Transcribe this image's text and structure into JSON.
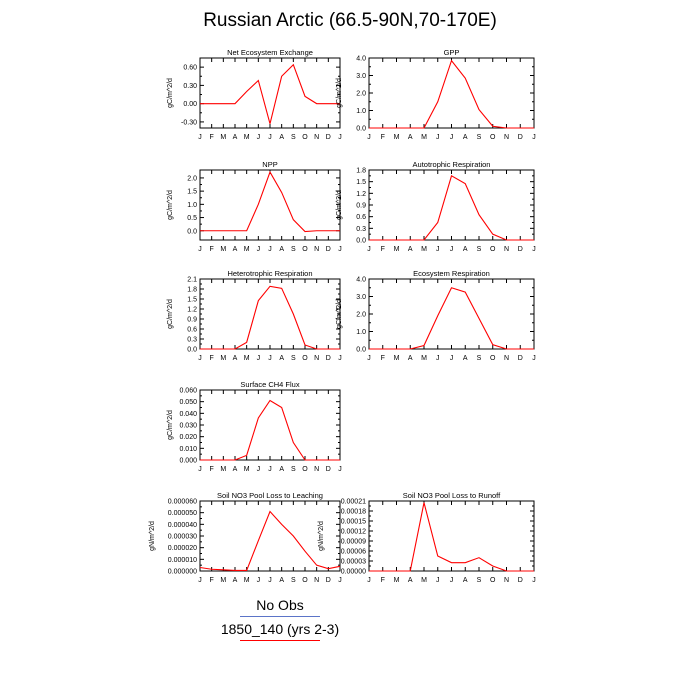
{
  "title": "Russian Arctic (66.5-90N,70-170E)",
  "colors": {
    "series": "#ff0000",
    "obs": "#5b74c8",
    "axis": "#000000"
  },
  "legend": [
    {
      "label": "No Obs",
      "color": "#5b74c8"
    },
    {
      "label": "1850_140 (yrs 2-3)",
      "color": "#ff0000"
    }
  ],
  "chart_data": [
    {
      "type": "line",
      "title": "Net Ecosystem Exchange",
      "ylabel": "gC/m^2/d",
      "categories": [
        "J",
        "F",
        "M",
        "A",
        "M",
        "J",
        "J",
        "A",
        "S",
        "O",
        "N",
        "D",
        "J"
      ],
      "ylim": [
        -0.4,
        0.75
      ],
      "yticks": [
        -0.3,
        0.0,
        0.3,
        0.6
      ],
      "yticklabels": [
        "-0.30",
        "0.00",
        "0.30",
        "0.60"
      ],
      "series": [
        {
          "values": [
            0.0,
            0.0,
            0.0,
            0.0,
            0.2,
            0.38,
            -0.33,
            0.45,
            0.64,
            0.12,
            0.0,
            0.0,
            0.0
          ]
        }
      ]
    },
    {
      "type": "line",
      "title": "GPP",
      "ylabel": "gC/m^2/d",
      "categories": [
        "J",
        "F",
        "M",
        "A",
        "M",
        "J",
        "J",
        "A",
        "S",
        "O",
        "N",
        "D",
        "J"
      ],
      "ylim": [
        0,
        4.0
      ],
      "yticks": [
        0.0,
        1.0,
        2.0,
        3.0,
        4.0
      ],
      "yticklabels": [
        "0.0",
        "1.0",
        "2.0",
        "3.0",
        "4.0"
      ],
      "series": [
        {
          "values": [
            0.0,
            0.0,
            0.0,
            0.0,
            0.0,
            1.5,
            3.85,
            2.85,
            1.05,
            0.1,
            0.0,
            0.0,
            0.0
          ]
        }
      ]
    },
    {
      "type": "line",
      "title": "NPP",
      "ylabel": "gC/m^2/d",
      "categories": [
        "J",
        "F",
        "M",
        "A",
        "M",
        "J",
        "J",
        "A",
        "S",
        "O",
        "N",
        "D",
        "J"
      ],
      "ylim": [
        -0.35,
        2.3
      ],
      "yticks": [
        0.0,
        0.5,
        1.0,
        1.5,
        2.0
      ],
      "yticklabels": [
        "0.0",
        "0.5",
        "1.0",
        "1.5",
        "2.0"
      ],
      "series": [
        {
          "values": [
            0.0,
            0.0,
            0.0,
            0.0,
            0.0,
            1.0,
            2.22,
            1.45,
            0.42,
            -0.03,
            0.0,
            0.0,
            0.0
          ]
        }
      ]
    },
    {
      "type": "line",
      "title": "Autotrophic Respiration",
      "ylabel": "gC/m^2/d",
      "categories": [
        "J",
        "F",
        "M",
        "A",
        "M",
        "J",
        "J",
        "A",
        "S",
        "O",
        "N",
        "D",
        "J"
      ],
      "ylim": [
        0,
        1.8
      ],
      "yticks": [
        0.0,
        0.3,
        0.6,
        0.9,
        1.2,
        1.5,
        1.8
      ],
      "yticklabels": [
        "0.0",
        "0.3",
        "0.6",
        "0.9",
        "1.2",
        "1.5",
        "1.8"
      ],
      "series": [
        {
          "values": [
            0.0,
            0.0,
            0.0,
            0.0,
            0.0,
            0.45,
            1.65,
            1.45,
            0.65,
            0.15,
            0.0,
            0.0,
            0.0
          ]
        }
      ]
    },
    {
      "type": "line",
      "title": "Heterotrophic Respiration",
      "ylabel": "gC/m^2/d",
      "categories": [
        "J",
        "F",
        "M",
        "A",
        "M",
        "J",
        "J",
        "A",
        "S",
        "O",
        "N",
        "D",
        "J"
      ],
      "ylim": [
        0,
        2.1
      ],
      "yticks": [
        0.0,
        0.3,
        0.6,
        0.9,
        1.2,
        1.5,
        1.8,
        2.1
      ],
      "yticklabels": [
        "0.0",
        "0.3",
        "0.6",
        "0.9",
        "1.2",
        "1.5",
        "1.8",
        "2.1"
      ],
      "series": [
        {
          "values": [
            0.0,
            0.0,
            0.0,
            0.0,
            0.2,
            1.45,
            1.88,
            1.82,
            1.05,
            0.12,
            0.0,
            0.0,
            0.0
          ]
        }
      ]
    },
    {
      "type": "line",
      "title": "Ecosystem Respiration",
      "ylabel": "gC/m^2/d",
      "categories": [
        "J",
        "F",
        "M",
        "A",
        "M",
        "J",
        "J",
        "A",
        "S",
        "O",
        "N",
        "D",
        "J"
      ],
      "ylim": [
        0,
        4.0
      ],
      "yticks": [
        0.0,
        1.0,
        2.0,
        3.0,
        4.0
      ],
      "yticklabels": [
        "0.0",
        "1.0",
        "2.0",
        "3.0",
        "4.0"
      ],
      "series": [
        {
          "values": [
            0.0,
            0.0,
            0.0,
            0.0,
            0.2,
            1.9,
            3.5,
            3.25,
            1.75,
            0.25,
            0.0,
            0.0,
            0.0
          ]
        }
      ]
    },
    {
      "type": "line",
      "title": "Surface CH4 Flux",
      "ylabel": "gC/m^2/d",
      "categories": [
        "J",
        "F",
        "M",
        "A",
        "M",
        "J",
        "J",
        "A",
        "S",
        "O",
        "N",
        "D",
        "J"
      ],
      "ylim": [
        0,
        0.06
      ],
      "yticks": [
        0.0,
        0.01,
        0.02,
        0.03,
        0.04,
        0.05,
        0.06
      ],
      "yticklabels": [
        "0.000",
        "0.010",
        "0.020",
        "0.030",
        "0.040",
        "0.050",
        "0.060"
      ],
      "series": [
        {
          "values": [
            0.0,
            0.0,
            0.0,
            0.0,
            0.004,
            0.036,
            0.051,
            0.045,
            0.015,
            0.0,
            0.0,
            0.0,
            0.0
          ]
        }
      ]
    },
    {
      "type": "line",
      "title": "Soil NO3 Pool Loss to Leaching",
      "ylabel": "gN/m^2/d",
      "categories": [
        "J",
        "F",
        "M",
        "A",
        "M",
        "J",
        "J",
        "A",
        "S",
        "O",
        "N",
        "D",
        "J"
      ],
      "ylim": [
        0,
        6e-05
      ],
      "yticks": [
        0.0,
        1e-05,
        2e-05,
        3e-05,
        4e-05,
        5e-05,
        6e-05
      ],
      "yticklabels": [
        "0.000000",
        "0.000010",
        "0.000020",
        "0.000030",
        "0.000040",
        "0.000050",
        "0.000060"
      ],
      "series": [
        {
          "values": [
            3e-06,
            1.5e-06,
            1e-06,
            5e-07,
            5e-07,
            2.6e-05,
            5.1e-05,
            4e-05,
            3e-05,
            1.7e-05,
            5e-06,
            2e-06,
            4e-06
          ]
        }
      ]
    },
    {
      "type": "line",
      "title": "Soil NO3 Pool Loss to Runoff",
      "ylabel": "gN/m^2/d",
      "categories": [
        "J",
        "F",
        "M",
        "A",
        "M",
        "J",
        "J",
        "A",
        "S",
        "O",
        "N",
        "D",
        "J"
      ],
      "ylim": [
        0,
        0.00021
      ],
      "yticks": [
        0.0,
        3e-05,
        6e-05,
        9e-05,
        0.00012,
        0.00015,
        0.00018,
        0.00021
      ],
      "yticklabels": [
        "0.00000",
        "0.00003",
        "0.00006",
        "0.00009",
        "0.00012",
        "0.00015",
        "0.00018",
        "0.00021"
      ],
      "series": [
        {
          "values": [
            0.0,
            0.0,
            0.0,
            0.0,
            0.000205,
            4.5e-05,
            2.5e-05,
            2.5e-05,
            4e-05,
            1.5e-05,
            0.0,
            0.0,
            0.0
          ]
        }
      ]
    }
  ]
}
